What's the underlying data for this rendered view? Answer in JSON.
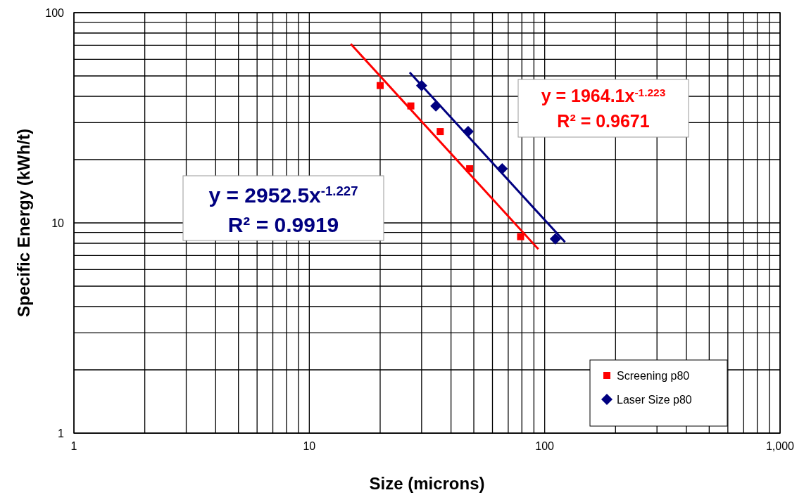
{
  "chart_data": {
    "type": "scatter",
    "xlabel": "Size (microns)",
    "ylabel": "Specific Energy (kWh/t)",
    "log": "xy",
    "grid": true,
    "legend": "bottom right",
    "xlim": [
      1,
      1000
    ],
    "xticks": [
      1,
      10,
      100,
      {
        "value": 1000,
        "label": "1,000"
      }
    ],
    "ylim": [
      1,
      100
    ],
    "yticks": [
      1,
      10,
      100
    ],
    "series": [
      {
        "name": "Screening p80",
        "marker": "square",
        "color": "#ff0000",
        "x": [
          20,
          27,
          36,
          48,
          79
        ],
        "values": [
          45,
          36,
          27.2,
          18.1,
          8.6
        ]
      },
      {
        "name": "Laser Size p80",
        "marker": "diamond",
        "color": "#000080",
        "x": [
          30,
          34.5,
          47.3,
          66,
          111
        ],
        "values": [
          45,
          36,
          27.2,
          18.1,
          8.4
        ]
      },
      {
        "type": "line",
        "marker": "none",
        "color": "#ff0000",
        "x": [
          15,
          94
        ],
        "values": [
          71,
          7.5
        ]
      },
      {
        "type": "line",
        "marker": "none",
        "color": "#000080",
        "x": [
          26.7,
          122
        ],
        "values": [
          52,
          8.1
        ]
      }
    ],
    "annotations": [
      "y = 2952.5x$^{-1.227}$",
      "R² = 0.9919",
      "y = 1964.1x$^{-1.223}$",
      "R² = 0.9671"
    ]
  }
}
